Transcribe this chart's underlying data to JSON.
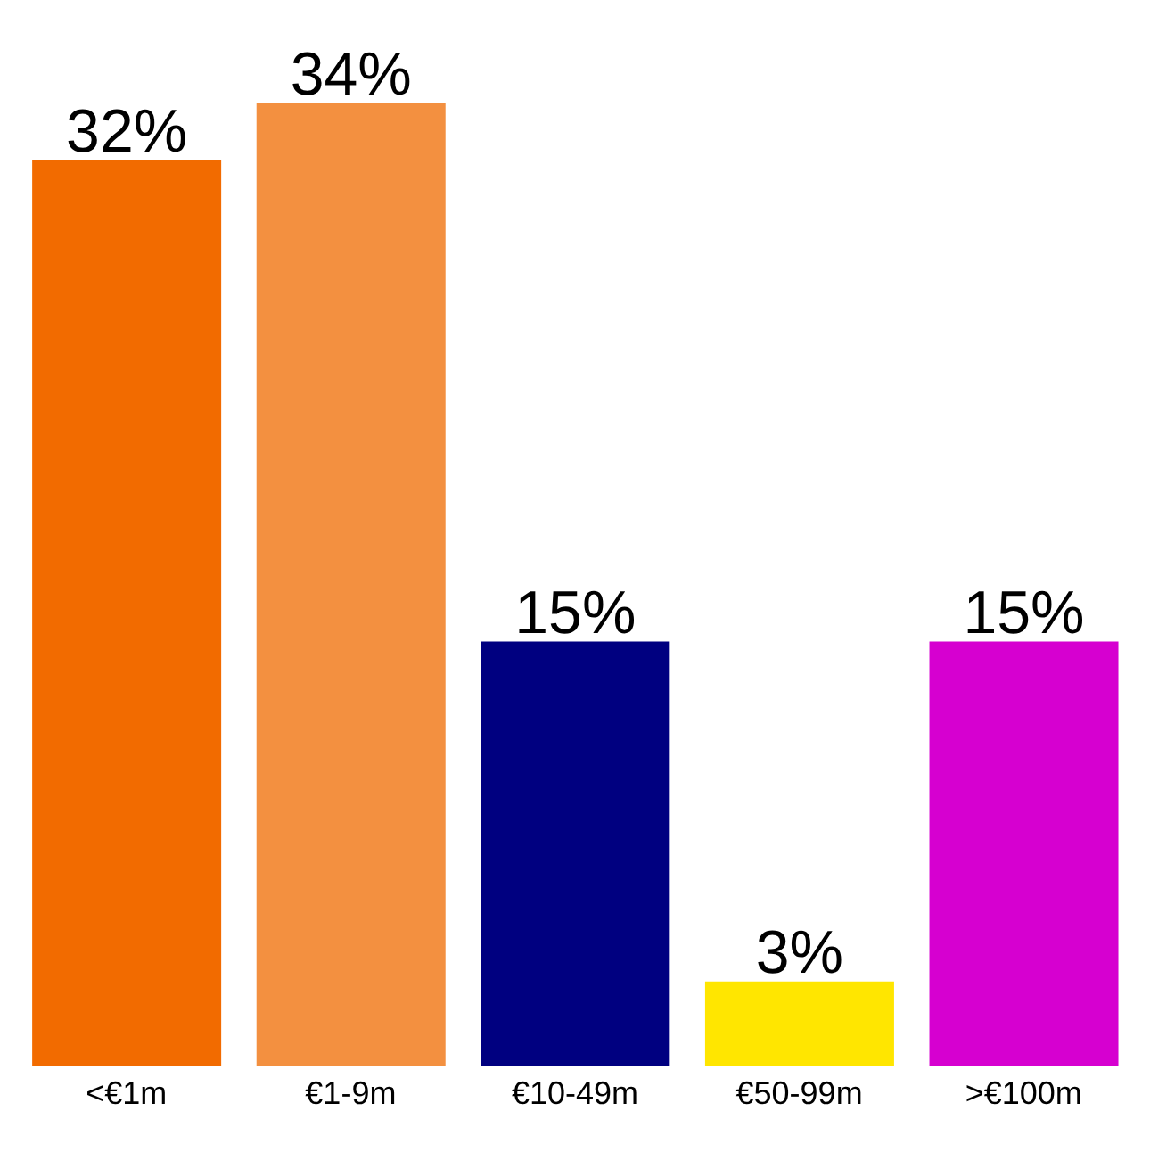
{
  "chart_data": {
    "type": "bar",
    "categories": [
      "<€1m",
      "€1-9m",
      "€10-49m",
      "€50-99m",
      ">€100m"
    ],
    "values": [
      32,
      34,
      15,
      3,
      15
    ],
    "colors": [
      "#f26b00",
      "#f39040",
      "#000080",
      "#ffe600",
      "#d600d0"
    ],
    "value_labels": [
      "32%",
      "34%",
      "15%",
      "3%",
      "15%"
    ]
  }
}
